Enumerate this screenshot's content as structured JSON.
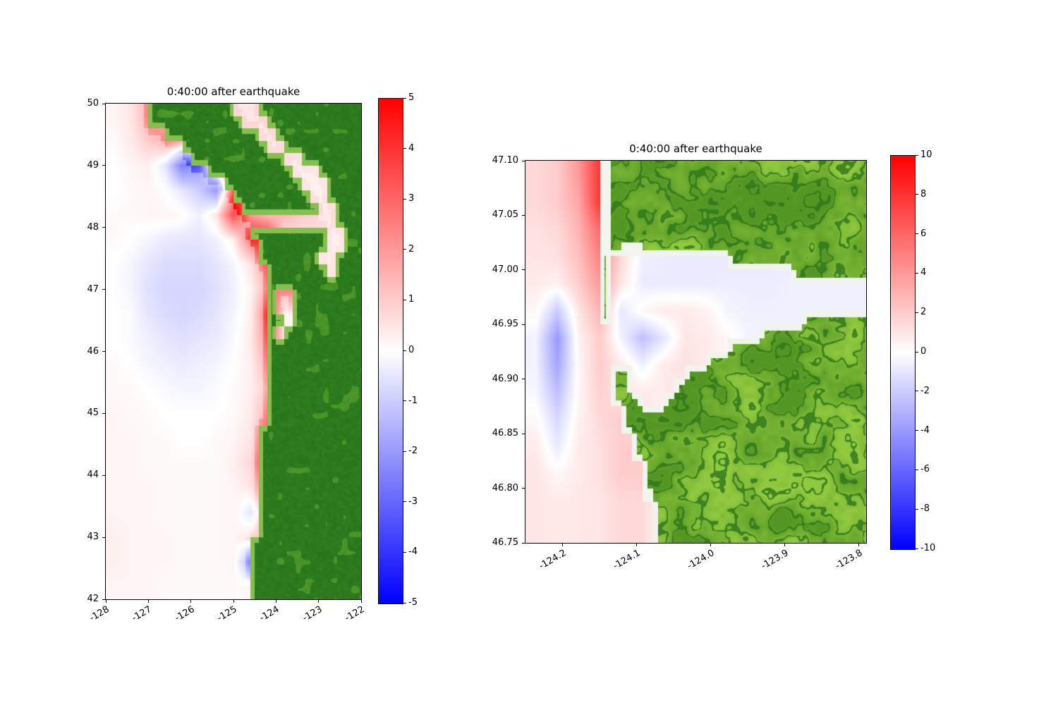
{
  "figure": {
    "background": "#ffffff"
  },
  "chart_data": [
    {
      "type": "heatmap",
      "title": "0:40:00 after earthquake",
      "xlim": [
        -128,
        -122
      ],
      "ylim": [
        42,
        50
      ],
      "x_tick_labels": [
        "-128",
        "-127",
        "-126",
        "-125",
        "-124",
        "-123",
        "-122"
      ],
      "x_tick_values": [
        -128,
        -127,
        -126,
        -125,
        -124,
        -123,
        -122
      ],
      "y_tick_labels": [
        "50",
        "49",
        "48",
        "47",
        "46",
        "45",
        "44",
        "43",
        "42"
      ],
      "y_tick_values": [
        50,
        49,
        48,
        47,
        46,
        45,
        44,
        43,
        42
      ],
      "colormap": "blue-white-red",
      "colorbar": {
        "vmin": -5,
        "vmax": 5,
        "tick_labels": [
          "5",
          "4",
          "3",
          "2",
          "1",
          "0",
          "-1",
          "-2",
          "-3",
          "-4",
          "-5"
        ],
        "tick_values": [
          5,
          4,
          3,
          2,
          1,
          0,
          -1,
          -2,
          -3,
          -4,
          -5
        ]
      },
      "coast_amplify": true,
      "land": {
        "texture": "flat",
        "base": "#2c7a1e",
        "light": "#4a9428",
        "fringe": "#86bf4f",
        "sand": "#f4f6f0"
      },
      "land_mask": [
        ".....GGGGGGGGGG...GGGGGGGGGGGG",
        ".....GGGGGGGGGGG...GGGGGGGGGGG",
        ".......GGGGGGGGGGG..GGGGGGGGGG",
        ".........GGGGGGGGGG..GGGGGGGGG",
        "..........GGGGGGGGGGG..GGGGGGG",
        "............GGGGGGGGGG...GGGGG",
        "..............GGGGGGGGG...GGGG",
        "...............GGGGGGGGG..GGGG",
        "................GGGGGGGGG..GGG",
        "...........................GGG",
        ".................GGGGGGGGG..GG",
        "..................GGGGGGGG..GG",
        "..................GGGGGGG..GGG",
        "...................GGGGGGG.GGG",
        "...................GGGGGGGGGGG",
        "...................G..GGGGGGGG",
        "...................G..GGGGGGGG",
        "...................GG.GGGGGGGG",
        "...................G.GGGGGGGGG",
        "...................GGGGGGGGGGG",
        "...................GGGGGGGGGGG",
        "...................GGGGGGGGGGG",
        "...................GGGGGGGGGGG",
        "...................GGGGGGGGGGG",
        "...................GGGGGGGGGGG",
        "...................GGGGGGGGGGG",
        "..................GGGGGGGGGGGG",
        "..................GGGGGGGGGGGG",
        "..................GGGGGGGGGGGG",
        "..................GGGGGGGGGGGG",
        "..................GGGGGGGGGGGG",
        "..................GGGGGGGGGGGG",
        "..................GGGGGGGGGGGG",
        "..................GGGGGGGGGGGG",
        "..................GGGGGGGGGGGG",
        ".................GGGGGGGGGGGGG",
        ".................GGGGGGGGGGGGG",
        ".................GGGGGGGGGGGGG",
        ".................GGGGGGGGGGGGG",
        ".................GGGGGGGGGGGGG"
      ],
      "field": [
        [
          0.2,
          0.5,
          1.5,
          0.8,
          0.5,
          0.5,
          0.5,
          0.5,
          0.5,
          0.5,
          0.5,
          0.5,
          0.5,
          0.5,
          0.5
        ],
        [
          0.1,
          0.4,
          1.0,
          1.5,
          1.0,
          1.0,
          1.0,
          0.6,
          0.4,
          0.4,
          0.4,
          0.4,
          0.4,
          0.4,
          0.4
        ],
        [
          0.0,
          0.2,
          0.3,
          -0.5,
          -2.5,
          -2.0,
          1.0,
          1.0,
          0.6,
          0.4,
          0.4,
          0.3,
          0.3,
          0.3,
          0.3
        ],
        [
          0.0,
          0.1,
          0.2,
          0.0,
          -0.5,
          -1.0,
          -2.0,
          2.0,
          2.0,
          1.0,
          0.4,
          0.3,
          0.3,
          0.3,
          0.3
        ],
        [
          0.1,
          0.1,
          0.2,
          0.2,
          0.1,
          -0.3,
          0.5,
          3.5,
          1.2,
          0.8,
          0.8,
          0.6,
          0.5,
          0.4,
          0.3
        ],
        [
          0.1,
          0.0,
          -0.2,
          -0.4,
          -0.5,
          -0.5,
          -0.3,
          0.3,
          2.5,
          2.5,
          0.3,
          0.3,
          0.3,
          0.3,
          0.3
        ],
        [
          0.0,
          -0.2,
          -0.5,
          -0.7,
          -0.7,
          -0.7,
          -0.5,
          -0.2,
          0.5,
          2.0,
          2.0,
          0.3,
          0.3,
          0.3,
          0.3
        ],
        [
          0.0,
          -0.2,
          -0.6,
          -0.8,
          -0.8,
          -0.8,
          -0.6,
          -0.3,
          0.2,
          1.5,
          1.5,
          1.5,
          0.3,
          0.3,
          0.3
        ],
        [
          0.0,
          -0.1,
          -0.5,
          -0.7,
          -0.8,
          -0.7,
          -0.5,
          -0.2,
          0.3,
          2.5,
          0.2,
          0.2,
          0.2,
          0.2,
          0.2
        ],
        [
          0.0,
          -0.1,
          -0.3,
          -0.5,
          -0.6,
          -0.5,
          -0.4,
          -0.1,
          0.4,
          2.0,
          0.3,
          0.3,
          0.3,
          0.3,
          0.3
        ],
        [
          0.1,
          0.0,
          -0.2,
          -0.3,
          -0.4,
          -0.3,
          -0.2,
          0.0,
          0.3,
          1.5,
          1.5,
          1.5,
          1.5,
          1.5,
          1.5
        ],
        [
          0.1,
          0.1,
          0.0,
          -0.1,
          -0.2,
          -0.2,
          -0.1,
          0.1,
          0.3,
          1.0,
          1.0,
          1.0,
          1.0,
          1.0,
          1.0
        ],
        [
          0.2,
          0.1,
          0.1,
          0.0,
          0.0,
          0.0,
          0.0,
          0.1,
          0.4,
          1.5,
          1.5,
          1.5,
          1.5,
          1.5,
          1.5
        ],
        [
          0.2,
          0.2,
          0.1,
          0.1,
          0.0,
          0.0,
          0.1,
          0.2,
          0.5,
          2.0,
          2.0,
          2.0,
          2.0,
          2.0,
          2.0
        ],
        [
          0.2,
          0.2,
          0.1,
          0.1,
          0.1,
          0.1,
          0.1,
          0.3,
          0.8,
          2.5,
          2.5,
          2.5,
          2.5,
          2.5,
          2.5
        ],
        [
          0.2,
          0.2,
          0.2,
          0.1,
          0.1,
          0.1,
          0.1,
          0.2,
          0.5,
          1.5,
          1.5,
          1.5,
          1.5,
          1.5,
          1.5
        ],
        [
          0.2,
          0.2,
          0.2,
          0.1,
          0.1,
          0.1,
          0.1,
          0.2,
          -0.5,
          1.0,
          1.0,
          1.0,
          1.0,
          1.0,
          1.0
        ],
        [
          0.3,
          0.2,
          0.2,
          0.2,
          0.1,
          0.1,
          0.1,
          0.2,
          0.5,
          0.8,
          0.8,
          0.8,
          0.8,
          0.8,
          0.8
        ],
        [
          0.3,
          0.2,
          0.2,
          0.2,
          0.1,
          0.1,
          0.1,
          0.2,
          -1.5,
          0.5,
          0.5,
          0.5,
          0.5,
          0.5,
          0.5
        ],
        [
          0.2,
          0.2,
          0.2,
          0.1,
          0.1,
          0.1,
          0.1,
          0.1,
          0.2,
          0.3,
          0.3,
          0.3,
          0.3,
          0.3,
          0.3
        ]
      ]
    },
    {
      "type": "heatmap",
      "title": "0:40:00 after earthquake",
      "xlim": [
        -124.25,
        -123.79
      ],
      "ylim": [
        46.75,
        47.1
      ],
      "x_tick_labels": [
        "-124.2",
        "-124.1",
        "-124.0",
        "-123.9",
        "-123.8"
      ],
      "x_tick_values": [
        -124.2,
        -124.1,
        -124.0,
        -123.9,
        -123.8
      ],
      "y_tick_labels": [
        "47.10",
        "47.05",
        "47.00",
        "46.95",
        "46.90",
        "46.85",
        "46.80",
        "46.75"
      ],
      "y_tick_values": [
        47.1,
        47.05,
        47.0,
        46.95,
        46.9,
        46.85,
        46.8,
        46.75
      ],
      "colormap": "blue-white-red",
      "colorbar": {
        "vmin": -10,
        "vmax": 10,
        "tick_labels": [
          "10",
          "8",
          "6",
          "4",
          "2",
          "0",
          "-2",
          "-4",
          "-6",
          "-8",
          "-10"
        ],
        "tick_values": [
          10,
          8,
          6,
          4,
          2,
          0,
          -2,
          -4,
          -6,
          -8,
          -10
        ]
      },
      "coast_amplify": false,
      "land": {
        "texture": "relief",
        "base": "#90c83e",
        "base2": "#549623",
        "vein": "#2d761b",
        "fringe": "#f1f4ec",
        "sand": "#f2f4ee"
      },
      "land_mask": [
        ".......wGGGGGGGGGGGGGGGGGGGGGGGG",
        ".......wGGGGGGGGGGGGGGGGGGGGGGGG",
        ".......wGGGGGGGGGGGGGGGGGGGGGGGG",
        ".......wGGGGGGGGGGGGGGGGGGGGGGGG",
        ".......wGGGGGGGGGGGGGGGGGGGGGGGG",
        ".......wGGGGGGGGGGGGGGGGGGGGGGGG",
        ".......wGwwGGGGGGGGGGGGGGGGGGGGG",
        ".......G...........GGGGGGGGGGGGG",
        ".......G.................GGGGGGG",
        ".......G........................",
        ".......G........................",
        ".......G..................GGGGGG",
        "......................GGGGGGGGGG",
        "...................GGGGGGGGGGGGG",
        ".................GGGGGGGGGGGGGGG",
        "........GG.....GGGGGGGGGGGGGGGGG",
        "........GG....GGGGGGGGGGGGGGGGGG",
        "........GGG..GGGGGGGGGGGGGGGGGGG",
        ".........GGGGGGGGGGGGGGGGGGGGGGG",
        ".........GGGGGGGGGGGGGGGGGGGGGGG",
        "..........GGGGGGGGGGGGGGGGGGGGGG",
        "..........GGGGGGGGGGGGGGGGGGGGGG",
        "...........GGGGGGGGGGGGGGGGGGGGG",
        "...........GGGGGGGGGGGGGGGGGGGGG",
        "...........wGGGGGGGGGGGGGGGGGGGG",
        "............GGGGGGGGGGGGGGGGGGGG",
        "............GGGGGGGGGGGGGGGGGGGG",
        "............GGGGGGGGGGGGGGGGGGGG"
      ],
      "field": [
        [
          1.5,
          2.0,
          4.0,
          8.0,
          3.0,
          -0.3,
          -0.3,
          -0.3,
          -0.3,
          -0.3,
          -0.3,
          -0.3,
          -0.3,
          -0.3,
          -0.3,
          -0.3
        ],
        [
          1.5,
          2.0,
          3.5,
          8.0,
          3.0,
          -0.4,
          -0.4,
          -0.4,
          -0.4,
          -0.4,
          -0.4,
          -0.4,
          -0.4,
          -0.4,
          -0.4,
          -0.4
        ],
        [
          1.2,
          1.5,
          3.0,
          6.0,
          2.0,
          -0.5,
          -0.6,
          -0.7,
          -0.7,
          -0.7,
          -0.7,
          -0.7,
          -0.6,
          -0.6,
          -0.6,
          -0.6
        ],
        [
          1.0,
          1.2,
          2.5,
          5.0,
          1.5,
          -0.6,
          -0.7,
          -0.8,
          -0.8,
          -0.8,
          -0.8,
          -0.8,
          -0.7,
          -0.6,
          -0.6,
          -0.6
        ],
        [
          0.8,
          0.5,
          2.0,
          4.0,
          1.0,
          -0.8,
          -0.8,
          -0.8,
          -0.8,
          -0.7,
          -0.7,
          -0.7,
          -0.6,
          -0.6,
          -0.6,
          -0.6
        ],
        [
          0.3,
          -2.0,
          1.0,
          3.0,
          -1.0,
          0.3,
          0.8,
          0.8,
          0.5,
          -0.4,
          -0.6,
          -0.6,
          -0.6,
          -0.6,
          -0.6,
          -0.6
        ],
        [
          -0.5,
          -4.0,
          0.5,
          2.0,
          -0.5,
          -2.5,
          -1.0,
          1.0,
          0.8,
          0.3,
          -0.5,
          -0.5,
          -0.5,
          -0.5,
          -0.5,
          -0.5
        ],
        [
          -0.5,
          -3.5,
          0.3,
          2.0,
          0.8,
          -0.5,
          0.8,
          1.2,
          0.8,
          0.3,
          -0.4,
          -0.4,
          -0.4,
          -0.4,
          -0.4,
          -0.4
        ],
        [
          -0.3,
          -2.5,
          0.3,
          1.8,
          1.2,
          0.8,
          0.8,
          0.8,
          0.5,
          0.2,
          -0.3,
          -0.3,
          -0.3,
          -0.3,
          -0.3,
          -0.3
        ],
        [
          0.3,
          -1.5,
          0.5,
          1.5,
          2.0,
          1.0,
          0.3,
          0.3,
          0.2,
          0.0,
          -0.2,
          -0.3,
          -0.3,
          -0.3,
          -0.3,
          -0.3
        ],
        [
          0.8,
          -0.8,
          0.8,
          1.2,
          2.0,
          2.0,
          0.2,
          0.2,
          0.1,
          0.0,
          -0.2,
          -0.2,
          -0.2,
          -0.2,
          -0.2,
          -0.2
        ],
        [
          1.0,
          0.3,
          0.8,
          1.2,
          2.0,
          2.0,
          0.2,
          0.1,
          0.1,
          0.0,
          -0.1,
          -0.1,
          -0.1,
          -0.1,
          -0.1,
          -0.1
        ],
        [
          1.0,
          0.8,
          0.9,
          1.0,
          1.5,
          1.5,
          0.1,
          0.1,
          0.0,
          0.0,
          0.0,
          0.0,
          0.0,
          0.0,
          0.0,
          0.0
        ],
        [
          1.0,
          0.8,
          0.9,
          1.0,
          1.5,
          1.5,
          0.1,
          0.0,
          0.0,
          0.0,
          0.0,
          0.0,
          0.0,
          0.0,
          0.0,
          0.0
        ]
      ]
    }
  ]
}
